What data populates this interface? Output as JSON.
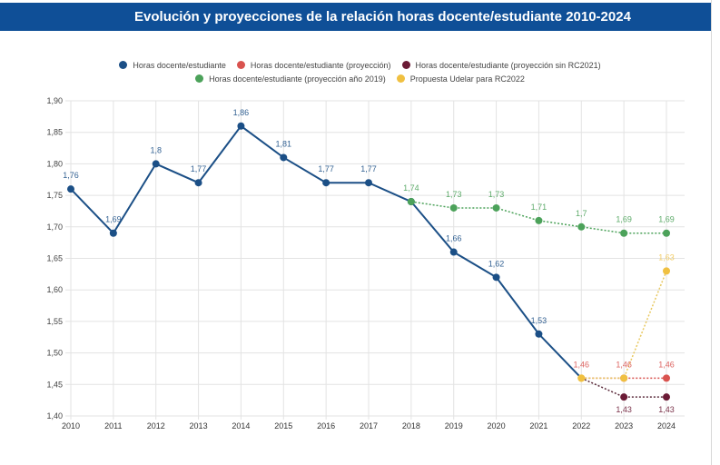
{
  "header": {
    "title": "Evolución y proyecciones de la relación horas docente/estudiante 2010-2024"
  },
  "chart_data": {
    "type": "line",
    "title": "Evolución y proyecciones de la relación horas docente/estudiante 2010-2024",
    "xlabel": "",
    "ylabel": "",
    "x": [
      "2010",
      "2011",
      "2012",
      "2013",
      "2014",
      "2015",
      "2016",
      "2017",
      "2018",
      "2019",
      "2020",
      "2021",
      "2022",
      "2023",
      "2024"
    ],
    "ylim": [
      1.4,
      1.9
    ],
    "yticks": [
      "1,40",
      "1,45",
      "1,50",
      "1,55",
      "1,60",
      "1,65",
      "1,70",
      "1,75",
      "1,80",
      "1,85",
      "1,90"
    ],
    "grid": true,
    "legend_position": "top-center",
    "series": [
      {
        "name": "Horas docente/estudiante",
        "color": "#1b4f86",
        "style": "solid",
        "values": [
          1.76,
          1.69,
          1.8,
          1.77,
          1.86,
          1.81,
          1.77,
          1.77,
          1.74,
          1.66,
          1.62,
          1.53,
          1.46,
          null,
          null
        ],
        "labels": [
          "1,76",
          "1,69",
          "1,8",
          "1,77",
          "1,86",
          "1,81",
          "1,77",
          "1,77",
          null,
          "1,66",
          "1,62",
          "1,53",
          null,
          null,
          null
        ]
      },
      {
        "name": "Horas docente/estudiante (proyección)",
        "color": "#d9534f",
        "style": "dotted",
        "values": [
          null,
          null,
          null,
          null,
          null,
          null,
          null,
          null,
          null,
          null,
          null,
          null,
          1.46,
          1.46,
          1.46
        ],
        "labels": [
          null,
          null,
          null,
          null,
          null,
          null,
          null,
          null,
          null,
          null,
          null,
          null,
          "1,46",
          "1,46",
          "1,46"
        ]
      },
      {
        "name": "Horas docente/estudiante (proyección sin RC2021)",
        "color": "#6b1a35",
        "style": "dotted",
        "values": [
          null,
          null,
          null,
          null,
          null,
          null,
          null,
          null,
          null,
          null,
          null,
          null,
          1.46,
          1.43,
          1.43
        ],
        "labels": [
          null,
          null,
          null,
          null,
          null,
          null,
          null,
          null,
          null,
          null,
          null,
          null,
          null,
          "1,43",
          "1,43"
        ]
      },
      {
        "name": "Horas docente/estudiante (proyección año 2019)",
        "color": "#4ca25a",
        "style": "dotted",
        "values": [
          null,
          null,
          null,
          null,
          null,
          null,
          null,
          null,
          1.74,
          1.73,
          1.73,
          1.71,
          1.7,
          1.69,
          1.69
        ],
        "labels": [
          null,
          null,
          null,
          null,
          null,
          null,
          null,
          null,
          "1,74",
          "1,73",
          "1,73",
          "1,71",
          "1,7",
          "1,69",
          "1,69"
        ]
      },
      {
        "name": "Propuesta Udelar para RC2022",
        "color": "#f0c040",
        "style": "dotted",
        "values": [
          null,
          null,
          null,
          null,
          null,
          null,
          null,
          null,
          null,
          null,
          null,
          null,
          1.46,
          1.46,
          1.63
        ],
        "labels": [
          null,
          null,
          null,
          null,
          null,
          null,
          null,
          null,
          null,
          null,
          null,
          null,
          null,
          null,
          "1,63"
        ]
      }
    ]
  },
  "legend": {
    "row1": [
      0,
      1,
      2
    ],
    "row2": [
      3,
      4
    ]
  }
}
